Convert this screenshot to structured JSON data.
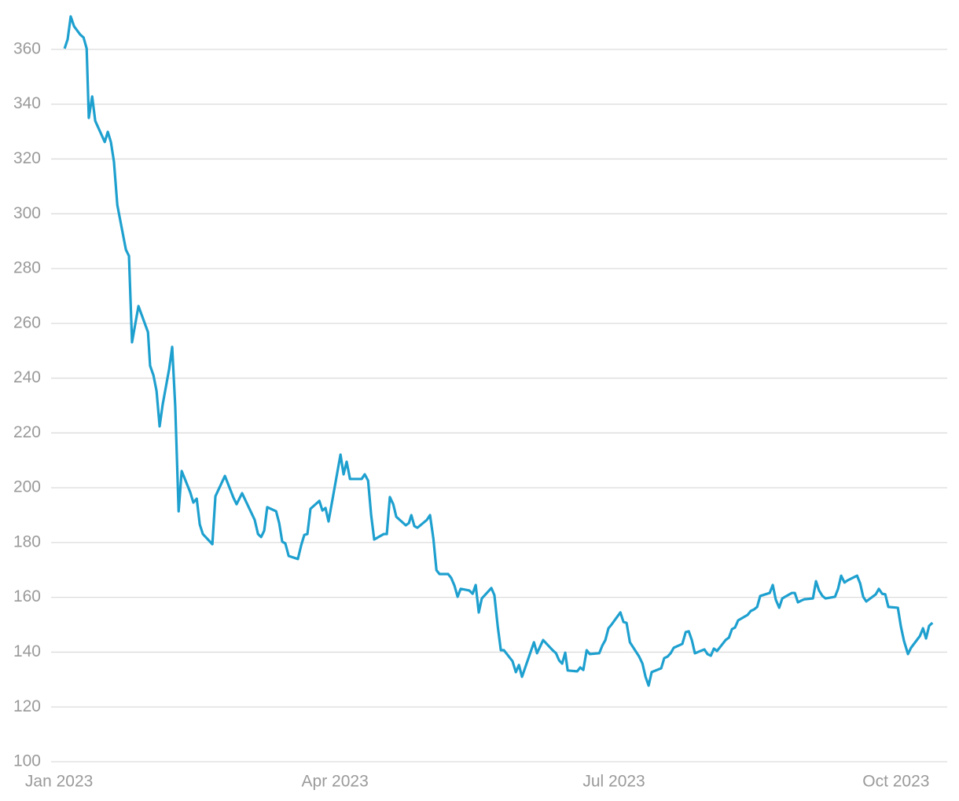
{
  "chart_data": {
    "type": "line",
    "x": [
      1.8,
      2.8,
      3.8,
      4.9,
      6.9,
      8,
      9,
      9.7,
      10.8,
      11.8,
      14.9,
      15.9,
      16.9,
      17.9,
      19,
      21.8,
      22.8,
      23.8,
      25.9,
      29,
      29.7,
      30.8,
      31.8,
      32.8,
      33.8,
      35.9,
      36.9,
      37.9,
      39,
      40,
      42.8,
      43.8,
      44.9,
      45.9,
      46.9,
      50,
      51,
      54.1,
      56.9,
      57.9,
      59.7,
      63.8,
      64.9,
      65.9,
      66.9,
      67.9,
      70.8,
      71.8,
      72.8,
      73.8,
      74.9,
      77.9,
      79,
      80,
      81,
      82,
      84.9,
      85.9,
      86.9,
      87.9,
      91.8,
      92.8,
      93.8,
      94.9,
      98.7,
      99.7,
      100.8,
      101.8,
      102.8,
      105.9,
      106.9,
      107.9,
      109,
      110,
      113.1,
      114.1,
      114.9,
      115.9,
      116.9,
      120,
      121,
      122.1,
      123.1,
      124.1,
      126.9,
      127.9,
      129,
      130,
      131,
      133.8,
      134.9,
      135.9,
      136.9,
      137.9,
      141,
      142,
      143.1,
      144.1,
      145.1,
      147.9,
      149,
      150,
      151,
      154.9,
      155.9,
      157.9,
      161,
      162.1,
      163.1,
      164.1,
      165.1,
      165.9,
      169,
      170,
      171,
      172.1,
      173.1,
      176.2,
      177.2,
      178.2,
      179.2,
      180.3,
      183.1,
      184.1,
      185.1,
      186.2,
      189.2,
      190.3,
      191.3,
      192.3,
      193.3,
      196.4,
      197.4,
      198.5,
      199.5,
      200.5,
      203.3,
      204.4,
      205.4,
      206.4,
      207.4,
      210.5,
      211.5,
      212.6,
      213.6,
      214.6,
      217.4,
      218.5,
      219.5,
      220.5,
      221.5,
      224.6,
      225.6,
      226.7,
      227.7,
      228.7,
      231.8,
      232.8,
      233.8,
      234.9,
      235.9,
      239,
      240,
      241,
      242.1,
      243.1,
      245.9,
      246.9,
      247.9,
      249,
      250,
      253.1,
      254.1,
      255.1,
      256.2,
      257.2,
      260.3,
      261.3,
      262.3,
      263.3,
      266.4,
      267.4,
      268.5,
      269.5,
      270.5,
      273.6,
      274.6,
      275.6,
      276.9,
      277.9,
      280.8,
      281.8,
      282.8,
      283.8,
      284.9
    ],
    "series": [
      {
        "color": "#1ea0cf",
        "values": [
          360.3,
          363.7,
          372,
          368.4,
          365.4,
          364.3,
          360.3,
          335,
          342.8,
          333.9,
          326.2,
          329.9,
          326.2,
          319,
          303.2,
          286.9,
          284.6,
          253.1,
          266.3,
          256.8,
          244.5,
          241,
          235.3,
          222.4,
          230.4,
          243.3,
          251.4,
          229.6,
          191.4,
          206.1,
          198.3,
          194.6,
          196,
          186.6,
          183.1,
          179.4,
          196.9,
          204.3,
          196.3,
          194,
          198,
          188.3,
          183.1,
          182,
          184.3,
          192.9,
          191.4,
          187.1,
          180.3,
          179.7,
          175.1,
          174,
          179.1,
          182.8,
          183.1,
          192.3,
          195.2,
          191.7,
          192.6,
          187.7,
          212.1,
          204.9,
          209.5,
          203.2,
          203.2,
          204.9,
          202.6,
          190,
          181.1,
          183.1,
          183.1,
          196.6,
          194,
          189.4,
          186.3,
          187.1,
          190,
          186,
          185.4,
          188.3,
          190,
          181.4,
          169.9,
          168.5,
          168.5,
          167.1,
          164.2,
          160.2,
          163.1,
          162.5,
          161.3,
          164.5,
          154.5,
          159.6,
          163.4,
          160.8,
          149.3,
          140.7,
          140.7,
          136.7,
          132.7,
          135.3,
          131,
          143.6,
          139.6,
          144.4,
          140.7,
          139.6,
          137,
          135.8,
          139.8,
          133.3,
          133,
          134.4,
          133.5,
          140.7,
          139.3,
          139.6,
          142.4,
          144.4,
          148.7,
          150.2,
          154.5,
          151,
          150.7,
          143.6,
          138.4,
          135.8,
          131,
          127.8,
          132.7,
          134.1,
          137.8,
          138.4,
          139.6,
          141.6,
          143,
          147.3,
          147.6,
          144.4,
          139.6,
          141,
          139.3,
          138.7,
          141.3,
          140.4,
          144.4,
          145.3,
          148.4,
          149,
          151.6,
          153.6,
          155,
          155.6,
          156.5,
          160.5,
          161.6,
          164.5,
          159.1,
          156.2,
          159.6,
          161.6,
          161.6,
          158.2,
          158.8,
          159.3,
          159.6,
          165.9,
          162.5,
          160.5,
          159.6,
          160.2,
          163.1,
          167.9,
          165.4,
          166.2,
          167.9,
          165.1,
          160.2,
          158.5,
          161.1,
          163.1,
          161.3,
          161.1,
          156.5,
          156.2,
          149.3,
          144.1,
          139.3,
          141.6,
          145.9,
          148.7,
          145,
          149.6,
          150.7
        ]
      }
    ],
    "xlim": [
      -2.6,
      289.7
    ],
    "xticks": [
      {
        "value": 0,
        "label": "Jan 2023"
      },
      {
        "value": 90,
        "label": "Apr 2023"
      },
      {
        "value": 181,
        "label": "Jul 2023"
      },
      {
        "value": 273,
        "label": "Oct 2023"
      }
    ],
    "ylim": [
      100,
      372
    ],
    "yticks": [
      100,
      120,
      140,
      160,
      180,
      200,
      220,
      240,
      260,
      280,
      300,
      320,
      340,
      360
    ],
    "grid": true
  }
}
